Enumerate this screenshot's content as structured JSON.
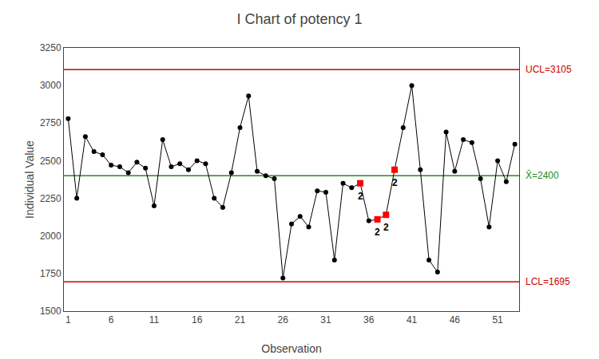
{
  "chart_data": {
    "type": "line",
    "title": "I Chart of potency 1",
    "x_label": "Observation",
    "y_label": "Individual Value",
    "x": [
      1,
      2,
      3,
      4,
      5,
      6,
      7,
      8,
      9,
      10,
      11,
      12,
      13,
      14,
      15,
      16,
      17,
      18,
      19,
      20,
      21,
      22,
      23,
      24,
      25,
      26,
      27,
      28,
      29,
      30,
      31,
      32,
      33,
      34,
      35,
      36,
      37,
      38,
      39,
      40,
      41,
      42,
      43,
      44,
      45,
      46,
      47,
      48,
      49,
      50,
      51,
      52,
      53
    ],
    "values": [
      2780,
      2250,
      2660,
      2560,
      2540,
      2470,
      2460,
      2420,
      2490,
      2450,
      2200,
      2640,
      2460,
      2480,
      2440,
      2500,
      2480,
      2250,
      2190,
      2420,
      2720,
      2930,
      2430,
      2400,
      2380,
      1720,
      2080,
      2130,
      2060,
      2300,
      2290,
      1840,
      2350,
      2320,
      2350,
      2100,
      2110,
      2140,
      2440,
      2720,
      3000,
      2440,
      1840,
      1760,
      2690,
      2430,
      2640,
      2620,
      2380,
      2060,
      2500,
      2360,
      2610
    ],
    "color": "#000000",
    "marker": "circle",
    "flags": {
      "x": [
        35,
        37,
        38,
        39
      ],
      "label": "2",
      "color": "#ff0000",
      "marker": "square"
    },
    "reference_lines": [
      {
        "value": 3105,
        "label": "UCL=3105",
        "color": "#cc0000"
      },
      {
        "value": 1695,
        "label": "LCL=1695",
        "color": "#cc0000"
      },
      {
        "value": 2400,
        "label": "X̄=2400",
        "color": "#228B22"
      }
    ],
    "xlim": [
      0.5,
      53.5
    ],
    "xticks": [
      1,
      6,
      11,
      16,
      21,
      26,
      31,
      36,
      41,
      46,
      51
    ],
    "ylim": [
      1500,
      3250
    ],
    "yticks": [
      1500,
      1750,
      2000,
      2250,
      2500,
      2750,
      3000,
      3250
    ],
    "grid": false
  }
}
